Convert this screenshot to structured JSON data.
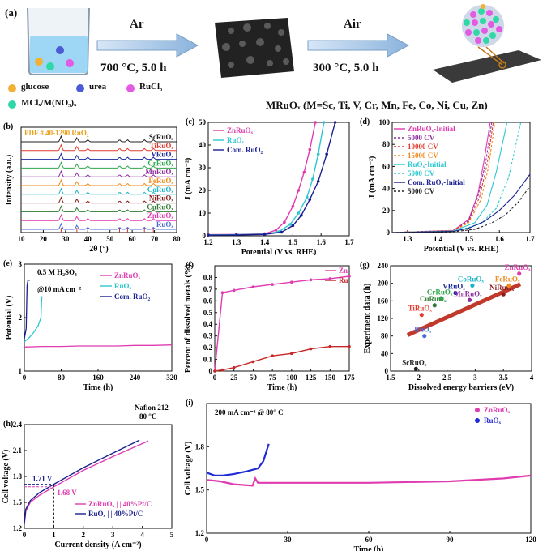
{
  "schematic": {
    "panel_label": "(a)",
    "step1_gas": "Ar",
    "step1_condition": "700 °C, 5.0 h",
    "step2_gas": "Air",
    "step2_condition": "300 °C, 5.0 h",
    "legend": [
      {
        "label": "glucose",
        "color": "#f2b134"
      },
      {
        "label": "urea",
        "color": "#4b5bd6"
      },
      {
        "label": "RuCl₃",
        "color": "#e35be3"
      },
      {
        "label": "MClₓ/M(NO₃)ₓ",
        "color": "#2fd8a6"
      }
    ],
    "formula": "MRuOₓ (M=Sc, Ti, V, Cr, Mn, Fe, Co, Ni, Cu, Zn)"
  },
  "chart_data": [
    {
      "panel": "(b)",
      "type": "line",
      "xlabel": "2θ (°)",
      "ylabel": "Intensity (a.u.)",
      "xlim": [
        10,
        80
      ],
      "xticks": [
        10,
        20,
        30,
        40,
        50,
        60,
        70,
        80
      ],
      "reference": "PDF # 40-1290 RuO₂",
      "reference_peaks": [
        28.0,
        35.1,
        40.0,
        54.3,
        57.9,
        65.5,
        69.5
      ],
      "series": [
        {
          "name": "ScRuOₓ",
          "color": "#222222"
        },
        {
          "name": "TiRuOₓ",
          "color": "#e23b2e"
        },
        {
          "name": "VRuOₓ",
          "color": "#1b2b9e"
        },
        {
          "name": "CrRuOₓ",
          "color": "#2ea84a"
        },
        {
          "name": "MnRuOₓ",
          "color": "#8e2fa3"
        },
        {
          "name": "FeRuOₓ",
          "color": "#f08a1c"
        },
        {
          "name": "CoRuOₓ",
          "color": "#1db3c9"
        },
        {
          "name": "NiRuOₓ",
          "color": "#8b1a1a"
        },
        {
          "name": "CuRuOₓ",
          "color": "#2e7d32"
        },
        {
          "name": "ZnRuOₓ",
          "color": "#e03bb0"
        },
        {
          "name": "RuOₓ",
          "color": "#4a6ad8"
        }
      ]
    },
    {
      "panel": "(c)",
      "type": "line",
      "xlabel": "Potential (V vs. RHE)",
      "ylabel": "J (mA cm⁻²)",
      "xlim": [
        1.2,
        1.7
      ],
      "ylim": [
        0,
        50
      ],
      "xticks": [
        1.2,
        1.3,
        1.4,
        1.5,
        1.6,
        1.7
      ],
      "yticks": [
        0,
        10,
        20,
        30,
        40,
        50
      ],
      "series": [
        {
          "name": "ZnRuOₓ",
          "color": "#e03bb0",
          "x": [
            1.2,
            1.3,
            1.4,
            1.44,
            1.47,
            1.5,
            1.52,
            1.54,
            1.56,
            1.58
          ],
          "y": [
            0.5,
            0.6,
            0.9,
            2.5,
            6,
            13,
            20,
            28,
            38,
            50
          ]
        },
        {
          "name": "RuOₓ",
          "color": "#2ec7d1",
          "x": [
            1.2,
            1.3,
            1.4,
            1.45,
            1.49,
            1.52,
            1.55,
            1.57,
            1.59,
            1.61
          ],
          "y": [
            0.4,
            0.5,
            0.7,
            1.8,
            5,
            10,
            17,
            25,
            36,
            50
          ]
        },
        {
          "name": "Com. RuO₂",
          "color": "#1b1f8f",
          "x": [
            1.2,
            1.3,
            1.4,
            1.46,
            1.5,
            1.53,
            1.56,
            1.59,
            1.62,
            1.65
          ],
          "y": [
            0.3,
            0.4,
            0.6,
            1.6,
            4.5,
            9,
            16,
            24,
            36,
            50
          ]
        }
      ]
    },
    {
      "panel": "(d)",
      "type": "line",
      "xlabel": "Potential (V vs. RHE)",
      "ylabel": "J (mA cm⁻²)",
      "xlim": [
        1.25,
        1.7
      ],
      "ylim": [
        0,
        100
      ],
      "xticks": [
        1.3,
        1.4,
        1.5,
        1.6,
        1.7
      ],
      "yticks": [
        0,
        20,
        40,
        60,
        80,
        100
      ],
      "series": [
        {
          "name": "ZnRuOₓ-Initial",
          "color": "#e03bb0",
          "dash": "",
          "x": [
            1.25,
            1.45,
            1.5,
            1.53,
            1.55,
            1.57
          ],
          "y": [
            0,
            2,
            12,
            35,
            65,
            100
          ]
        },
        {
          "name": "5000 CV",
          "color": "#8e2fa3",
          "dash": "3,2",
          "x": [
            1.25,
            1.45,
            1.5,
            1.53,
            1.555,
            1.575
          ],
          "y": [
            0,
            2,
            11,
            33,
            63,
            100
          ]
        },
        {
          "name": "10000 CV",
          "color": "#e23b2e",
          "dash": "3,2",
          "x": [
            1.25,
            1.45,
            1.5,
            1.535,
            1.56,
            1.58
          ],
          "y": [
            0,
            2,
            10,
            32,
            62,
            100
          ]
        },
        {
          "name": "15000 CV",
          "color": "#f08a1c",
          "dash": "3,2",
          "x": [
            1.25,
            1.45,
            1.5,
            1.54,
            1.565,
            1.585
          ],
          "y": [
            0,
            1.5,
            9,
            30,
            60,
            100
          ]
        },
        {
          "name": "RuOₓ-Initial",
          "color": "#2ec7d1",
          "dash": "",
          "x": [
            1.25,
            1.45,
            1.52,
            1.56,
            1.59,
            1.625
          ],
          "y": [
            0,
            1.5,
            9,
            25,
            55,
            100
          ]
        },
        {
          "name": "5000 CV",
          "color": "#2ec7d1",
          "dash": "3,2",
          "x": [
            1.25,
            1.46,
            1.54,
            1.59,
            1.63,
            1.67
          ],
          "y": [
            0,
            1.5,
            8,
            22,
            50,
            100
          ]
        },
        {
          "name": "Com. RuO₂-Initial",
          "color": "#1b1f8f",
          "dash": "",
          "x": [
            1.25,
            1.45,
            1.5,
            1.55,
            1.6,
            1.65,
            1.7
          ],
          "y": [
            0,
            1,
            4,
            10,
            20,
            34,
            53
          ]
        },
        {
          "name": "5000 CV",
          "color": "#222222",
          "dash": "3,2",
          "x": [
            1.25,
            1.46,
            1.52,
            1.57,
            1.62,
            1.66,
            1.7
          ],
          "y": [
            0,
            1,
            3,
            8,
            16,
            27,
            42
          ]
        }
      ]
    },
    {
      "panel": "(e)",
      "type": "line",
      "xlabel": "Time (h)",
      "ylabel": "Potential (V)",
      "xlim": [
        0,
        320
      ],
      "ylim": [
        1.0,
        3.0
      ],
      "xticks": [
        0,
        80,
        160,
        240,
        320
      ],
      "yticks": [
        1,
        2,
        3
      ],
      "annotations": [
        "0.5 M H₂SO₄",
        "@10 mA cm⁻²"
      ],
      "series": [
        {
          "name": "ZnRuOₓ",
          "color": "#e03bb0",
          "x": [
            0,
            40,
            80,
            120,
            160,
            200,
            240,
            280,
            320
          ],
          "y": [
            1.45,
            1.46,
            1.46,
            1.47,
            1.47,
            1.47,
            1.48,
            1.48,
            1.49
          ]
        },
        {
          "name": "RuOₓ",
          "color": "#2ec7d1",
          "x": [
            0,
            10,
            20,
            30,
            36,
            38
          ],
          "y": [
            1.55,
            1.62,
            1.72,
            1.85,
            2.0,
            2.4
          ]
        },
        {
          "name": "Com. RuO₂",
          "color": "#1b1f8f",
          "x": [
            0,
            4,
            6,
            8,
            12
          ],
          "y": [
            1.6,
            1.8,
            2.6,
            2.7,
            2.7
          ]
        }
      ]
    },
    {
      "panel": "(f)",
      "type": "line",
      "xlabel": "Time (h)",
      "ylabel": "Percent of dissolved metals (%)",
      "xlim": [
        0,
        175
      ],
      "ylim": [
        0,
        0.9
      ],
      "xticks": [
        0,
        25,
        50,
        75,
        100,
        125,
        150,
        175
      ],
      "yticks": [
        0.0,
        0.1,
        0.2,
        0.3,
        0.4,
        0.5,
        0.6,
        0.7,
        0.8
      ],
      "series": [
        {
          "name": "Zn",
          "color": "#e03bb0",
          "x": [
            0,
            10,
            25,
            50,
            75,
            100,
            125,
            150,
            175
          ],
          "y": [
            0,
            0.67,
            0.69,
            0.72,
            0.74,
            0.76,
            0.78,
            0.79,
            0.81
          ]
        },
        {
          "name": "Ru",
          "color": "#c62828",
          "x": [
            0,
            10,
            25,
            50,
            75,
            100,
            125,
            150,
            175
          ],
          "y": [
            0,
            0.01,
            0.03,
            0.08,
            0.13,
            0.15,
            0.19,
            0.21,
            0.21
          ]
        }
      ]
    },
    {
      "panel": "(g)",
      "type": "scatter",
      "xlabel": "Dissolved energy barriers (eV)",
      "ylabel": "Experiment data (h)",
      "xlim": [
        1.5,
        4.0
      ],
      "ylim": [
        0,
        240
      ],
      "xticks": [
        1.5,
        2.0,
        2.5,
        3.0,
        3.5,
        4.0
      ],
      "yticks": [
        0,
        40,
        80,
        120,
        160,
        200,
        240
      ],
      "fit_line": {
        "x": [
          1.8,
          3.8
        ],
        "y": [
          82,
          198
        ]
      },
      "points": [
        {
          "label": "ScRuOₓ",
          "x": 1.95,
          "y": 5,
          "color": "#222222"
        },
        {
          "label": "TiRuOₓ",
          "x": 2.05,
          "y": 128,
          "color": "#e23b2e"
        },
        {
          "label": "RuOₓ",
          "x": 2.1,
          "y": 80,
          "color": "#4a6ad8"
        },
        {
          "label": "CuRuOₓ",
          "x": 2.28,
          "y": 150,
          "color": "#2e7d32"
        },
        {
          "label": "CrRuOₓ",
          "x": 2.4,
          "y": 165,
          "color": "#2ea84a"
        },
        {
          "label": "VRuOₓ",
          "x": 2.65,
          "y": 178,
          "color": "#1b2b9e"
        },
        {
          "label": "MnRuOₓ",
          "x": 2.9,
          "y": 162,
          "color": "#8e2fa3"
        },
        {
          "label": "CoRuOₓ",
          "x": 2.95,
          "y": 195,
          "color": "#1db3c9"
        },
        {
          "label": "NiRuOₓ",
          "x": 3.5,
          "y": 175,
          "color": "#8b1a1a"
        },
        {
          "label": "FeRuOₓ",
          "x": 3.6,
          "y": 195,
          "color": "#f08a1c"
        },
        {
          "label": "ZnRuOₓ",
          "x": 3.78,
          "y": 222,
          "color": "#e03bb0"
        }
      ]
    },
    {
      "panel": "(h)",
      "type": "line",
      "xlabel": "Current density (A cm⁻²)",
      "ylabel": "Cell voltage (V)",
      "xlim": [
        0,
        5
      ],
      "ylim": [
        1.2,
        2.4
      ],
      "xticks": [
        0,
        1,
        2,
        3,
        4,
        5
      ],
      "yticks": [
        1.2,
        1.5,
        1.8,
        2.1,
        2.4
      ],
      "annotations": [
        "Nafion 212",
        "80 °C",
        "1.71 V",
        "1.68 V"
      ],
      "series": [
        {
          "name": "ZnRuOₓ | | 40%Pt/C",
          "color": "#e03bb0",
          "x": [
            0,
            0.05,
            0.2,
            0.5,
            1,
            2,
            3,
            4,
            4.2
          ],
          "y": [
            1.25,
            1.4,
            1.5,
            1.58,
            1.68,
            1.87,
            2.03,
            2.18,
            2.21
          ]
        },
        {
          "name": "RuOₓ | | 40%Pt/C",
          "color": "#1b1f8f",
          "x": [
            0,
            0.05,
            0.2,
            0.5,
            1,
            2,
            3,
            3.9
          ],
          "y": [
            1.25,
            1.42,
            1.52,
            1.61,
            1.71,
            1.9,
            2.07,
            2.22
          ]
        }
      ]
    },
    {
      "panel": "(i)",
      "type": "line",
      "xlabel": "Time (h)",
      "ylabel": "Cell voltage (V)",
      "xlim": [
        0,
        120
      ],
      "ylim": [
        1.2,
        2.1
      ],
      "xticks": [
        0,
        30,
        60,
        90,
        120
      ],
      "yticks": [
        1.2,
        1.5,
        1.8
      ],
      "annotations": [
        "200 mA cm⁻² @ 80° C"
      ],
      "series": [
        {
          "name": "ZnRuOₓ",
          "color": "#e03bb0",
          "x": [
            0,
            5,
            10,
            17,
            18,
            19,
            30,
            60,
            90,
            110,
            120
          ],
          "y": [
            1.57,
            1.56,
            1.54,
            1.53,
            1.58,
            1.55,
            1.55,
            1.55,
            1.56,
            1.58,
            1.6
          ]
        },
        {
          "name": "RuOₓ",
          "color": "#1f2bd6",
          "x": [
            0,
            3,
            6,
            10,
            15,
            19,
            21,
            22,
            23
          ],
          "y": [
            1.62,
            1.6,
            1.6,
            1.61,
            1.63,
            1.65,
            1.7,
            1.76,
            1.82
          ]
        }
      ]
    }
  ]
}
